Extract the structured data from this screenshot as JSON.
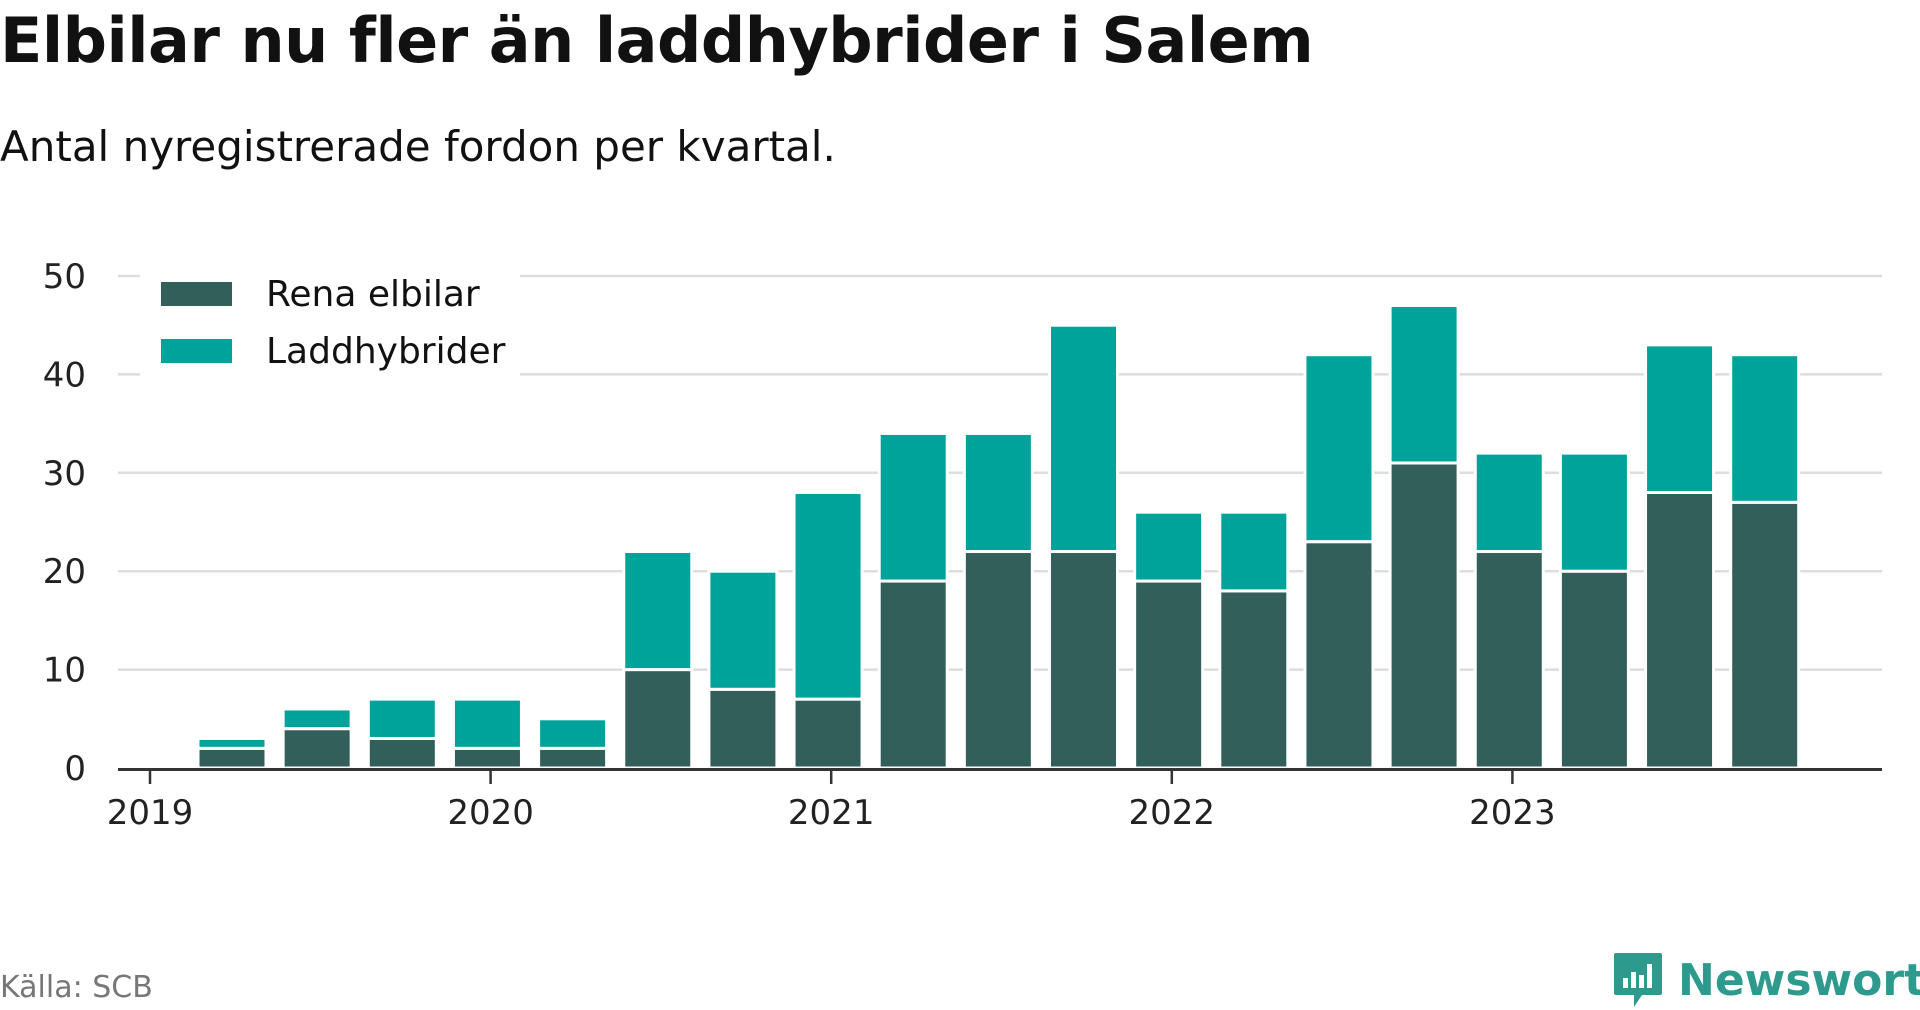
{
  "title": "Elbilar nu fler än laddhybrider i Salem",
  "subtitle": "Antal nyregistrerade fordon per kvartal.",
  "source": "Källa: SCB",
  "brand": {
    "name": "Newsworthy",
    "icon": "bar-chart-speech-bubble-icon",
    "color": "#2e9a8e"
  },
  "colors": {
    "series_1": "#335f5b",
    "series_2": "#00a39a",
    "grid": "#dddddd",
    "axis": "#333333"
  },
  "chart_data": {
    "type": "bar",
    "stacked": true,
    "categories": [
      "2019 Q1",
      "2019 Q2",
      "2019 Q3",
      "2019 Q4",
      "2020 Q1",
      "2020 Q2",
      "2020 Q3",
      "2020 Q4",
      "2021 Q1",
      "2021 Q2",
      "2021 Q3",
      "2021 Q4",
      "2022 Q1",
      "2022 Q2",
      "2022 Q3",
      "2022 Q4",
      "2023 Q1",
      "2023 Q2",
      "2023 Q3",
      "2023 Q4"
    ],
    "x_tick_labels": [
      "2019",
      "2020",
      "2021",
      "2022",
      "2023"
    ],
    "series": [
      {
        "name": "Rena elbilar",
        "color": "#335f5b",
        "values": [
          0,
          2,
          4,
          3,
          2,
          2,
          10,
          8,
          7,
          19,
          22,
          22,
          19,
          18,
          23,
          31,
          22,
          20,
          28,
          27
        ]
      },
      {
        "name": "Laddhybrider",
        "color": "#00a39a",
        "values": [
          0,
          1,
          2,
          4,
          5,
          3,
          12,
          12,
          21,
          15,
          12,
          23,
          7,
          8,
          19,
          16,
          10,
          12,
          15,
          15
        ]
      }
    ],
    "ylim": [
      0,
      50
    ],
    "y_ticks": [
      0,
      10,
      20,
      30,
      40,
      50
    ],
    "grid": true,
    "legend_position": "top-left"
  }
}
